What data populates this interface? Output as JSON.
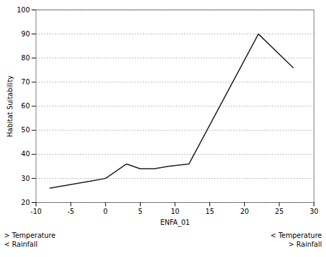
{
  "chart_data": {
    "type": "line",
    "x": [
      -8,
      -6,
      -4,
      -2,
      0,
      3,
      5,
      7,
      9,
      12,
      22,
      27
    ],
    "values": [
      26,
      27,
      28,
      29,
      30,
      36,
      34,
      34,
      35,
      36,
      90,
      76
    ],
    "color": "#1a1a1a",
    "xlabel": "ENFA_01",
    "ylabel": "Habitat Suitability",
    "xlim": [
      -10,
      30
    ],
    "ylim": [
      20,
      100
    ],
    "xticks": [
      -10,
      -5,
      0,
      5,
      10,
      15,
      20,
      25,
      30
    ],
    "yticks": [
      20,
      30,
      40,
      50,
      60,
      70,
      80,
      90,
      100
    ],
    "grid": "y",
    "annotations": [
      [
        "> Temperature",
        "< Rainfall"
      ],
      [
        "< Temperature",
        "> Rainfall"
      ]
    ]
  }
}
